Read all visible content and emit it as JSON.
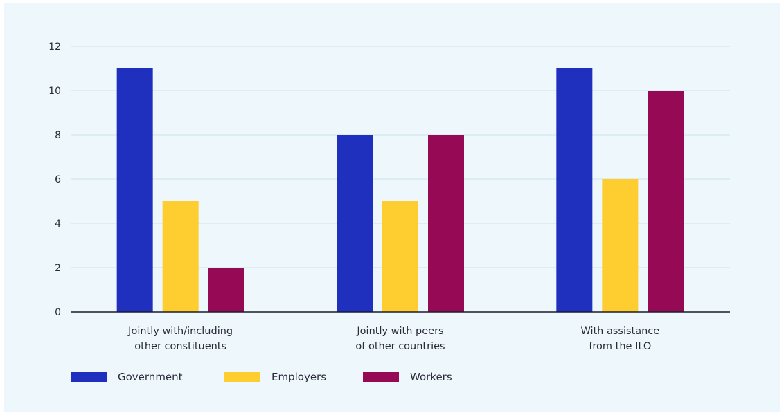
{
  "chart_data": {
    "type": "bar",
    "categories": [
      [
        "Jointly with/including",
        "other constituents"
      ],
      [
        "Jointly with peers",
        "of other countries"
      ],
      [
        "With assistance",
        "from the ILO"
      ]
    ],
    "series": [
      {
        "name": "Government",
        "color": "#1f2fbe",
        "values": [
          11,
          8,
          11
        ]
      },
      {
        "name": "Employers",
        "color": "#fecd2f",
        "values": [
          5,
          5,
          6
        ]
      },
      {
        "name": "Workers",
        "color": "#960a55",
        "values": [
          2,
          8,
          10
        ]
      }
    ],
    "ylim": [
      0,
      12
    ],
    "yticks": [
      0,
      2,
      4,
      6,
      8,
      10,
      12
    ],
    "grid": true,
    "legend_position": "bottom-left"
  }
}
